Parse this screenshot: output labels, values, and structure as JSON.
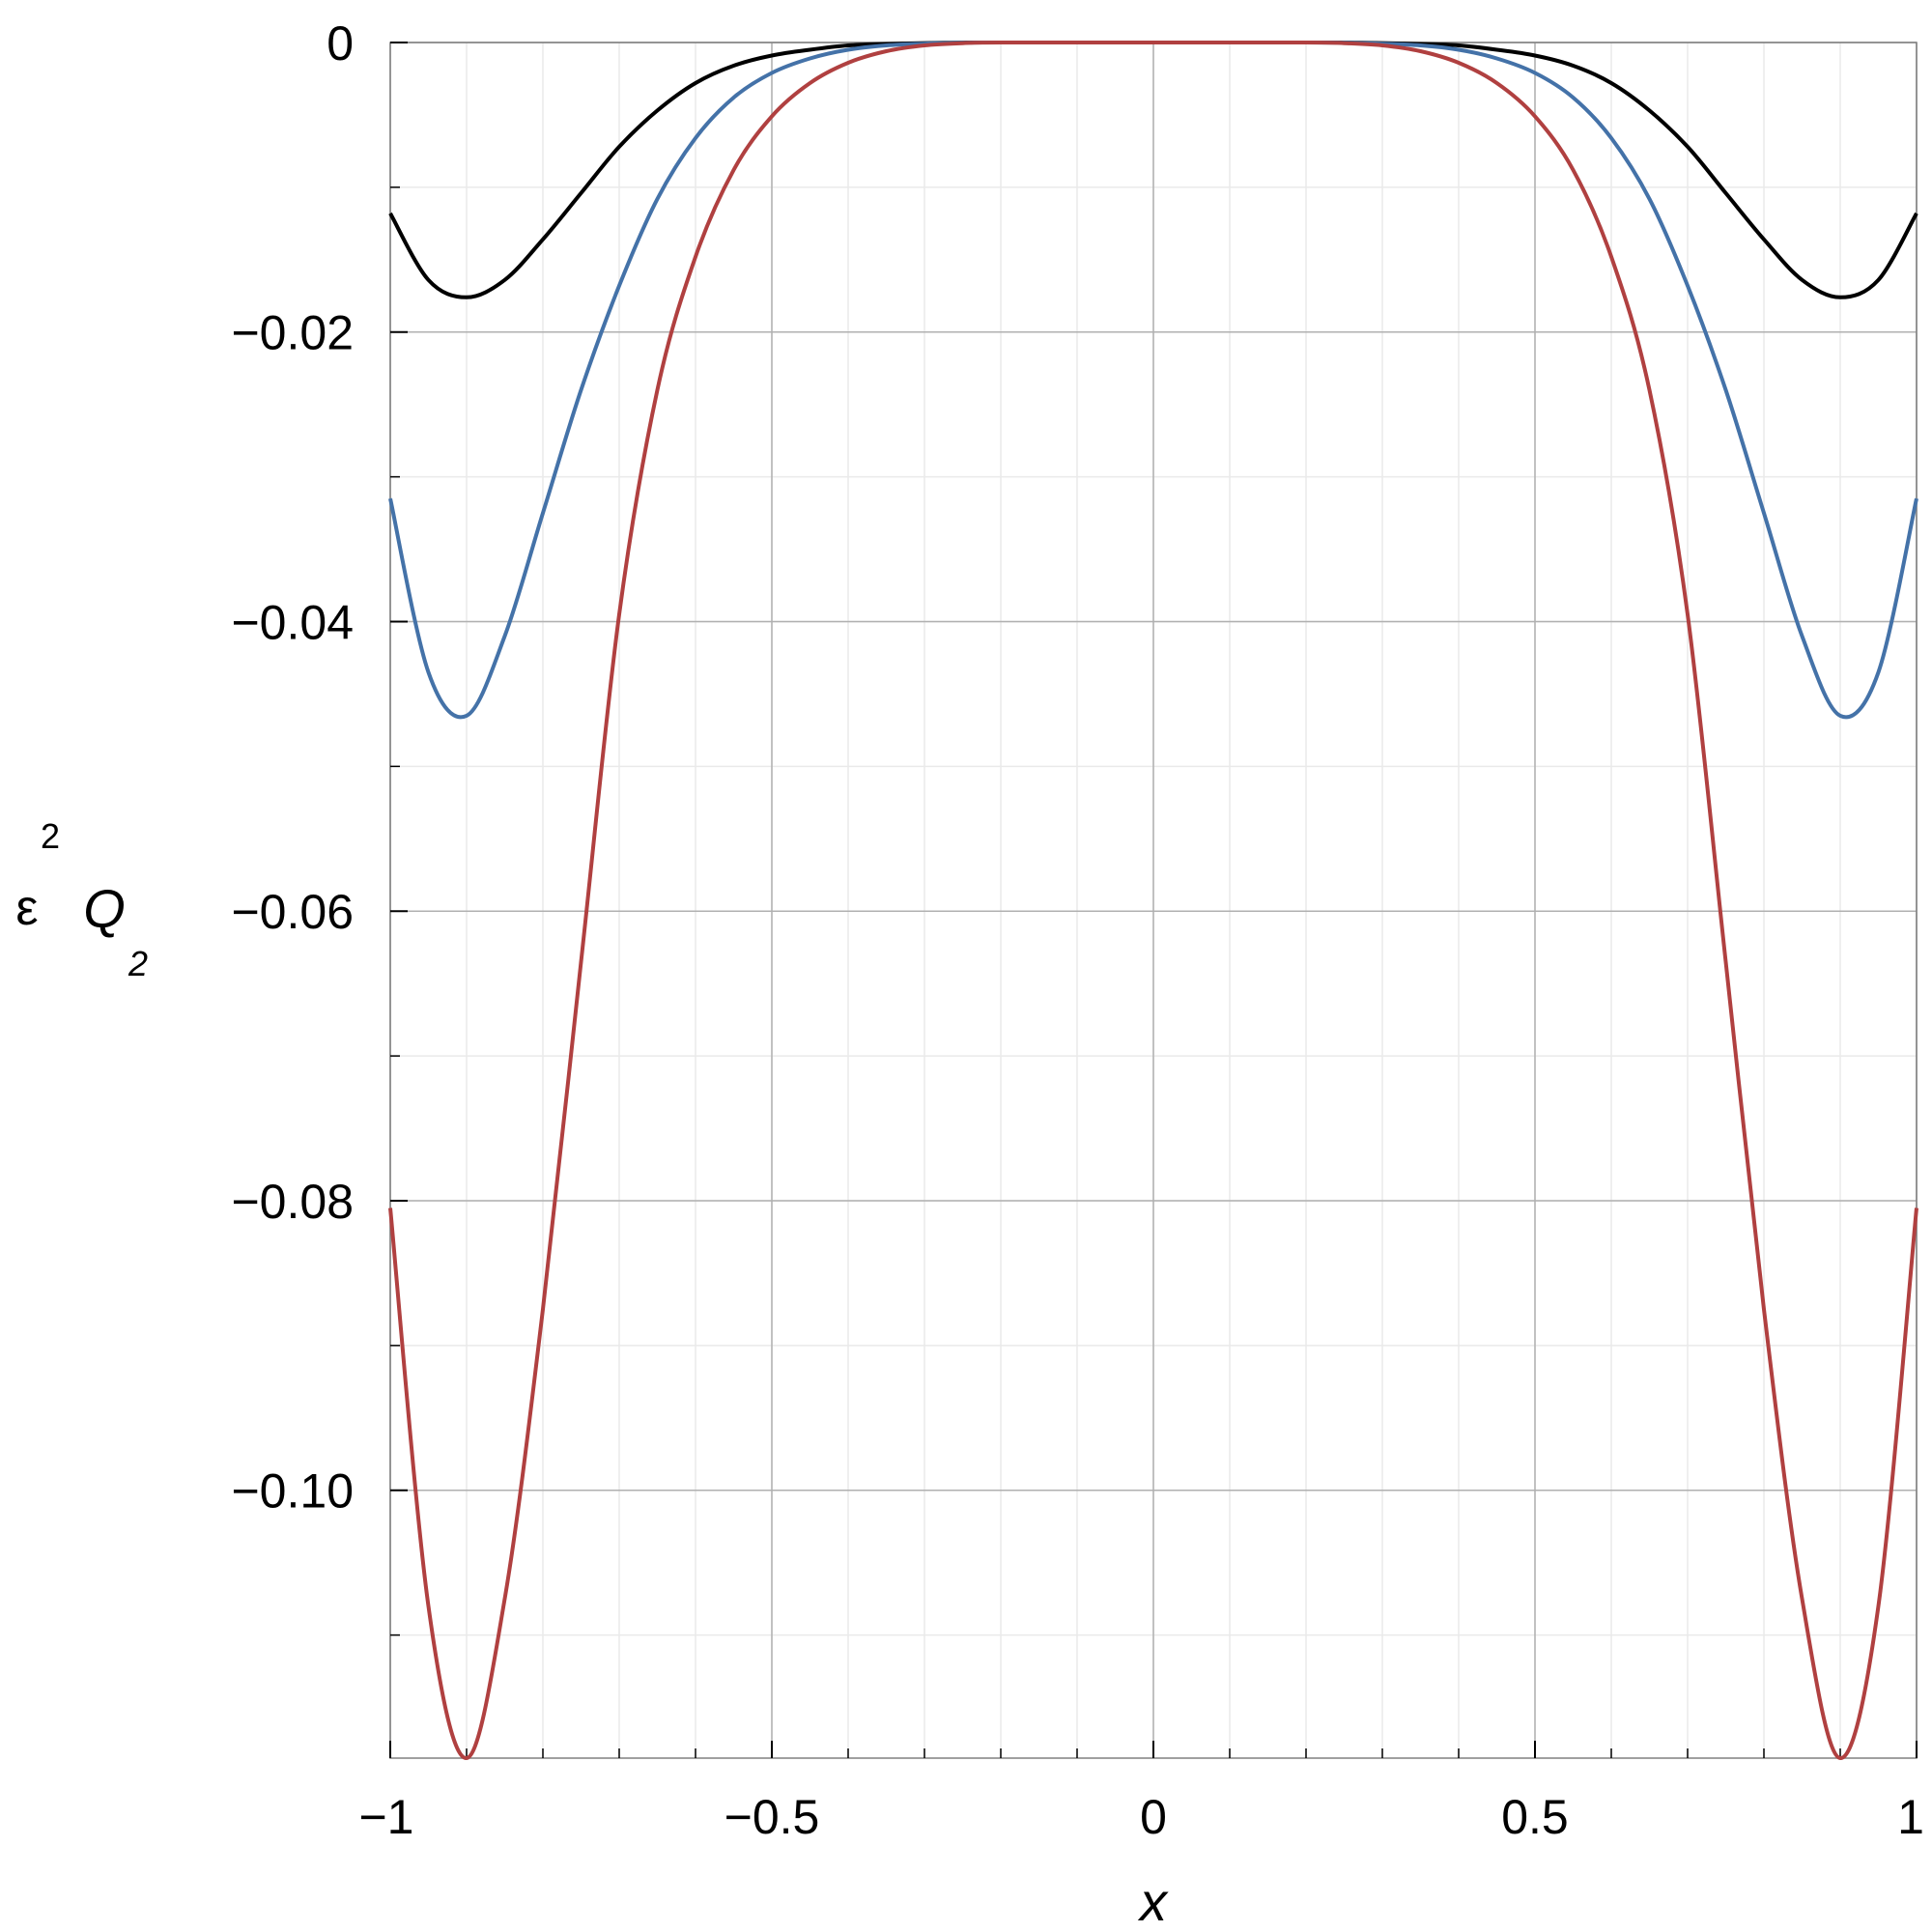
{
  "chart_data": {
    "type": "line",
    "title": "",
    "xlabel": "x",
    "ylabel": {
      "eps": "ε",
      "eps_sup": "2",
      "q": "Q",
      "q_sub": "2"
    },
    "xlim": [
      -1,
      1
    ],
    "ylim": [
      -0.1185,
      0
    ],
    "grid": true,
    "x_ticks": [
      {
        "value": -1,
        "label": "−1"
      },
      {
        "value": -0.5,
        "label": "−0.5"
      },
      {
        "value": 0,
        "label": "0"
      },
      {
        "value": 0.5,
        "label": "0.5"
      },
      {
        "value": 1,
        "label": "1"
      }
    ],
    "y_ticks": [
      {
        "value": 0,
        "label": "0"
      },
      {
        "value": -0.02,
        "label": "−0.02"
      },
      {
        "value": -0.04,
        "label": "−0.04"
      },
      {
        "value": -0.06,
        "label": "−0.06"
      },
      {
        "value": -0.08,
        "label": "−0.08"
      },
      {
        "value": -0.1,
        "label": "−0.10"
      }
    ],
    "x_minor_step": 0.1,
    "y_minor_step": 0.01,
    "series": [
      {
        "color": "#000000",
        "x": [
          -1,
          -0.95,
          -0.9,
          -0.85,
          -0.8,
          -0.75,
          -0.7,
          -0.65,
          -0.6,
          -0.55,
          -0.5,
          -0.45,
          -0.4,
          -0.35,
          -0.3,
          -0.25,
          -0.2,
          0,
          0.2,
          0.25,
          0.3,
          0.35,
          0.4,
          0.45,
          0.5,
          0.55,
          0.6,
          0.65,
          0.7,
          0.75,
          0.8,
          0.85,
          0.9,
          0.95,
          1
        ],
        "values": [
          -0.0118,
          -0.0164,
          -0.0176,
          -0.0164,
          -0.0136,
          -0.0104,
          -0.0072,
          -0.0047,
          -0.0028,
          -0.0016,
          -0.0009,
          -0.0005,
          -0.0002,
          -0.0001,
          -4e-05,
          -1e-05,
          0,
          0,
          0,
          -1e-05,
          -4e-05,
          -0.0001,
          -0.0002,
          -0.0005,
          -0.0009,
          -0.0016,
          -0.0028,
          -0.0047,
          -0.0072,
          -0.0104,
          -0.0136,
          -0.0164,
          -0.0176,
          -0.0164,
          -0.0118
        ]
      },
      {
        "color": "#4472a8",
        "x": [
          -1,
          -0.95,
          -0.9,
          -0.85,
          -0.8,
          -0.75,
          -0.7,
          -0.65,
          -0.6,
          -0.55,
          -0.5,
          -0.45,
          -0.4,
          -0.35,
          -0.3,
          -0.25,
          -0.2,
          0,
          0.2,
          0.25,
          0.3,
          0.35,
          0.4,
          0.45,
          0.5,
          0.55,
          0.6,
          0.65,
          0.7,
          0.75,
          0.8,
          0.85,
          0.9,
          0.95,
          1
        ],
        "values": [
          -0.0315,
          -0.0435,
          -0.0465,
          -0.041,
          -0.0325,
          -0.024,
          -0.0168,
          -0.0108,
          -0.0066,
          -0.0038,
          -0.0021,
          -0.0011,
          -0.0005,
          -0.0002,
          -8e-05,
          -2e-05,
          0,
          0,
          0,
          -2e-05,
          -8e-05,
          -0.0002,
          -0.0005,
          -0.0011,
          -0.0021,
          -0.0038,
          -0.0066,
          -0.0108,
          -0.0168,
          -0.024,
          -0.0325,
          -0.041,
          -0.0465,
          -0.0435,
          -0.0315
        ]
      },
      {
        "color": "#b04040",
        "x": [
          -1,
          -0.95,
          -0.9,
          -0.85,
          -0.8,
          -0.75,
          -0.7,
          -0.65,
          -0.6,
          -0.55,
          -0.5,
          -0.45,
          -0.4,
          -0.35,
          -0.3,
          -0.25,
          -0.2,
          0,
          0.2,
          0.25,
          0.3,
          0.35,
          0.4,
          0.45,
          0.5,
          0.55,
          0.6,
          0.65,
          0.7,
          0.75,
          0.8,
          0.85,
          0.9,
          0.95,
          1
        ],
        "values": [
          -0.0805,
          -0.108,
          -0.1185,
          -0.1075,
          -0.0875,
          -0.0635,
          -0.0395,
          -0.024,
          -0.0148,
          -0.0088,
          -0.0051,
          -0.0028,
          -0.0014,
          -0.0006,
          -0.0002,
          -5e-05,
          0,
          0,
          0,
          -5e-05,
          -0.0002,
          -0.0006,
          -0.0014,
          -0.0028,
          -0.0051,
          -0.0088,
          -0.0148,
          -0.024,
          -0.0395,
          -0.0635,
          -0.0875,
          -0.1075,
          -0.1185,
          -0.108,
          -0.0805
        ]
      }
    ]
  }
}
